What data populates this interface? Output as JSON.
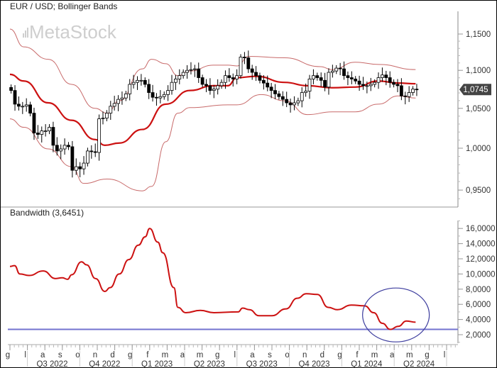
{
  "chart_data": [
    {
      "type": "candlestick",
      "title": "EUR / USD; Bollinger Bands",
      "watermark": "MetaStock",
      "y_scale": "log",
      "ylim": [
        0.935,
        1.165
      ],
      "yticks": [
        "1,1500",
        "1,1000",
        "1,0500",
        "1,0000",
        "0,9500"
      ],
      "ytick_values": [
        1.15,
        1.1,
        1.05,
        1.0,
        0.95
      ],
      "last_price_label": "1,0745",
      "last_price": 1.0745,
      "period": "weekly",
      "candle_date_range": [
        "2022-06-03",
        "2024-05-10"
      ],
      "closes": [
        1.0732,
        1.0554,
        1.0527,
        1.0527,
        1.0545,
        1.0438,
        1.0188,
        1.017,
        1.0214,
        1.0214,
        1.0259,
        1.0036,
        0.9966,
        0.9991,
        1.0036,
        1.0018,
        0.9733,
        0.9776,
        0.975,
        0.9819,
        0.9966,
        0.9957,
        0.9948,
        1.0366,
        1.0375,
        1.0438,
        1.0527,
        1.0563,
        1.0616,
        1.0634,
        1.0688,
        1.0813,
        1.0839,
        1.0866,
        1.0866,
        1.0813,
        1.0705,
        1.0643,
        1.0634,
        1.0652,
        1.0679,
        1.0732,
        1.0839,
        1.0884,
        1.0929,
        1.0973,
        1.1,
        1.101,
        1.102,
        1.0902,
        1.0813,
        1.0795,
        1.0732,
        1.075,
        1.0795,
        1.0839,
        1.0929,
        1.0902,
        1.0884,
        1.0929,
        1.118,
        1.117,
        1.102,
        1.0973,
        1.0929,
        1.0866,
        1.083,
        1.0777,
        1.0732,
        1.0688,
        1.0652,
        1.0616,
        1.0571,
        1.0545,
        1.0571,
        1.0598,
        1.0705,
        1.0723,
        1.0884,
        1.0929,
        1.0902,
        1.0866,
        1.0777,
        1.0973,
        1.0991,
        1.103,
        1.102,
        1.0929,
        1.0902,
        1.0884,
        1.0857,
        1.0813,
        1.0795,
        1.0795,
        1.0813,
        1.0839,
        1.0902,
        1.0938,
        1.0902,
        1.0839,
        1.0813,
        1.0795,
        1.0661,
        1.0652,
        1.0705,
        1.075,
        1.0745
      ],
      "bands": {
        "middle": [
          [
            "2022-06-01",
            1.0946
          ],
          [
            "2022-06-25",
            1.0857
          ],
          [
            "2022-08-07",
            1.0571
          ],
          [
            "2022-09-17",
            1.0348
          ],
          [
            "2022-10-28",
            1.0107
          ],
          [
            "2022-11-14",
            1.0036
          ],
          [
            "2022-12-09",
            1.0063
          ],
          [
            "2023-01-19",
            1.0232
          ],
          [
            "2023-02-27",
            1.0554
          ],
          [
            "2023-04-10",
            1.0732
          ],
          [
            "2023-05-21",
            1.0795
          ],
          [
            "2023-06-15",
            1.0795
          ],
          [
            "2023-07-01",
            1.0902
          ],
          [
            "2023-08-04",
            1.092
          ],
          [
            "2023-09-23",
            1.0839
          ],
          [
            "2023-11-02",
            1.0795
          ],
          [
            "2023-12-15",
            1.0768
          ],
          [
            "2024-01-25",
            1.0777
          ],
          [
            "2024-03-04",
            1.0857
          ],
          [
            "2024-04-08",
            1.083
          ],
          [
            "2024-05-08",
            1.0821
          ]
        ],
        "upper": [
          [
            "2022-06-01",
            1.157
          ],
          [
            "2022-06-25",
            1.132
          ],
          [
            "2022-08-07",
            1.115
          ],
          [
            "2022-09-17",
            1.0813
          ],
          [
            "2022-10-28",
            1.05
          ],
          [
            "2022-11-18",
            1.0438
          ],
          [
            "2022-12-09",
            1.0598
          ],
          [
            "2023-01-19",
            1.102
          ],
          [
            "2023-02-04",
            1.115
          ],
          [
            "2023-02-27",
            1.109
          ],
          [
            "2023-03-20",
            1.0929
          ],
          [
            "2023-04-10",
            1.0991
          ],
          [
            "2023-05-21",
            1.107
          ],
          [
            "2023-06-15",
            1.107
          ],
          [
            "2023-07-01",
            1.106
          ],
          [
            "2023-07-22",
            1.119
          ],
          [
            "2023-09-23",
            1.117
          ],
          [
            "2023-11-24",
            1.105
          ],
          [
            "2023-12-15",
            1.101
          ],
          [
            "2024-01-25",
            1.111
          ],
          [
            "2024-03-04",
            1.108
          ],
          [
            "2024-05-08",
            1.101
          ]
        ],
        "lower": [
          [
            "2022-06-01",
            1.0366
          ],
          [
            "2022-06-25",
            1.0259
          ],
          [
            "2022-08-07",
            0.9991
          ],
          [
            "2022-09-17",
            0.9776
          ],
          [
            "2022-10-08",
            0.9578
          ],
          [
            "2022-11-18",
            0.9629
          ],
          [
            "2023-01-19",
            0.9491
          ],
          [
            "2023-02-04",
            0.9543
          ],
          [
            "2023-02-27",
            1.008
          ],
          [
            "2023-03-20",
            1.0438
          ],
          [
            "2023-04-10",
            1.0509
          ],
          [
            "2023-06-15",
            1.0545
          ],
          [
            "2023-07-01",
            1.0545
          ],
          [
            "2023-08-13",
            1.0679
          ],
          [
            "2023-09-23",
            1.0598
          ],
          [
            "2023-11-02",
            1.042
          ],
          [
            "2023-12-15",
            1.0455
          ],
          [
            "2024-01-25",
            1.0455
          ],
          [
            "2024-03-04",
            1.0554
          ],
          [
            "2024-04-08",
            1.0661
          ],
          [
            "2024-05-08",
            1.0634
          ]
        ]
      },
      "colors": {
        "middle_band": "#cc1111",
        "outer_bands": "#c86a6a",
        "bear": "#000000",
        "bull": "#ffffff",
        "price_label_bg": "#444444"
      }
    },
    {
      "type": "line",
      "title": "Bandwidth (3,6451)",
      "ylim": [
        1.2,
        17.2
      ],
      "yticks": [
        "16,0000",
        "14,0000",
        "12,0000",
        "10,0000",
        "8,0000",
        "6,0000",
        "4,0000",
        "2,0000"
      ],
      "ytick_values": [
        16,
        14,
        12,
        10,
        8,
        6,
        4,
        2
      ],
      "series_color": "#cc1111",
      "points": [
        [
          "2022-06-01",
          11.0
        ],
        [
          "2022-06-09",
          11.1
        ],
        [
          "2022-06-18",
          10.0
        ],
        [
          "2022-07-04",
          9.8
        ],
        [
          "2022-07-29",
          10.4
        ],
        [
          "2022-08-20",
          9.4
        ],
        [
          "2022-09-01",
          9.5
        ],
        [
          "2022-09-10",
          9.3
        ],
        [
          "2022-09-17",
          9.9
        ],
        [
          "2022-10-04",
          11.6
        ],
        [
          "2022-10-13",
          11.2
        ],
        [
          "2022-10-29",
          9.4
        ],
        [
          "2022-11-14",
          7.7
        ],
        [
          "2022-11-23",
          8.2
        ],
        [
          "2022-12-09",
          10.0
        ],
        [
          "2022-12-26",
          11.9
        ],
        [
          "2023-01-12",
          13.8
        ],
        [
          "2023-01-24",
          14.9
        ],
        [
          "2023-02-01",
          16.0
        ],
        [
          "2023-02-14",
          14.2
        ],
        [
          "2023-02-22",
          12.8
        ],
        [
          "2023-03-13",
          8.2
        ],
        [
          "2023-03-20",
          5.6
        ],
        [
          "2023-04-03",
          4.9
        ],
        [
          "2023-04-28",
          5.2
        ],
        [
          "2023-05-22",
          4.9
        ],
        [
          "2023-07-03",
          5.0
        ],
        [
          "2023-07-11",
          5.5
        ],
        [
          "2023-07-23",
          5.3
        ],
        [
          "2023-08-09",
          4.5
        ],
        [
          "2023-09-01",
          4.5
        ],
        [
          "2023-09-25",
          5.4
        ],
        [
          "2023-10-15",
          6.8
        ],
        [
          "2023-10-31",
          7.4
        ],
        [
          "2023-11-19",
          7.3
        ],
        [
          "2023-12-08",
          5.6
        ],
        [
          "2023-12-24",
          5.3
        ],
        [
          "2024-01-18",
          5.9
        ],
        [
          "2024-02-10",
          5.8
        ],
        [
          "2024-02-25",
          4.9
        ],
        [
          "2024-03-11",
          3.5
        ],
        [
          "2024-03-25",
          2.7
        ],
        [
          "2024-04-08",
          3.1
        ],
        [
          "2024-04-22",
          3.8
        ],
        [
          "2024-05-08",
          3.6451
        ]
      ],
      "horizontal_line": {
        "value": 2.7,
        "color": "#7373cf"
      },
      "annotation_ellipse": {
        "center_date": "2024-04-04",
        "center_value": 4.6,
        "color": "#3d3d9e"
      }
    }
  ],
  "x_axis": {
    "months": [
      "g",
      "l",
      "a",
      "s",
      "o",
      "n",
      "d",
      "g",
      "f",
      "m",
      "a",
      "m",
      "g",
      "l",
      "a",
      "s",
      "o",
      "n",
      "d",
      "g",
      "f",
      "m",
      "a",
      "m",
      "g",
      "l"
    ],
    "first_month": "2022-06",
    "quarters": [
      "Q3 2022",
      "Q4 2022",
      "Q1 2023",
      "Q2 2023",
      "Q3 2023",
      "Q4 2023",
      "Q1 2024",
      "Q2 2024"
    ]
  }
}
